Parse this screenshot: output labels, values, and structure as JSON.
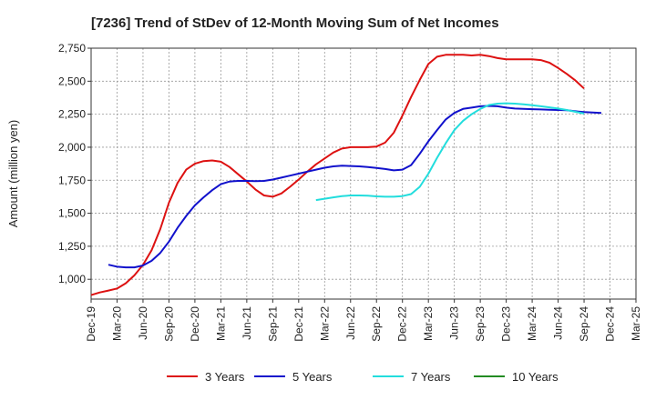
{
  "chart_data": {
    "type": "line",
    "title": "[7236]  Trend of StDev of 12-Month Moving Sum of Net Incomes",
    "xlabel": "",
    "ylabel": "Amount (million yen)",
    "ylim": [
      850,
      2750
    ],
    "yticks": [
      1000,
      1250,
      1500,
      1750,
      2000,
      2250,
      2500,
      2750
    ],
    "ytick_labels": [
      "1,000",
      "1,250",
      "1,500",
      "1,750",
      "2,000",
      "2,250",
      "2,500",
      "2,750"
    ],
    "xtick_labels": [
      "Dec-19",
      "Mar-20",
      "Jun-20",
      "Sep-20",
      "Dec-20",
      "Mar-21",
      "Jun-21",
      "Sep-21",
      "Dec-21",
      "Mar-22",
      "Jun-22",
      "Sep-22",
      "Dec-22",
      "Mar-23",
      "Jun-23",
      "Sep-23",
      "Dec-23",
      "Mar-24",
      "Jun-24",
      "Sep-24",
      "Dec-24",
      "Mar-25"
    ],
    "grid": true,
    "legend_position": "bottom",
    "series": [
      {
        "name": "3 Years",
        "color": "#dd1111",
        "start_index": 0,
        "values": [
          880,
          900,
          915,
          930,
          970,
          1030,
          1110,
          1220,
          1380,
          1580,
          1730,
          1830,
          1875,
          1895,
          1900,
          1890,
          1850,
          1795,
          1740,
          1680,
          1635,
          1625,
          1650,
          1700,
          1755,
          1815,
          1870,
          1915,
          1960,
          1990,
          2000,
          2000,
          2000,
          2005,
          2035,
          2110,
          2240,
          2380,
          2510,
          2630,
          2685,
          2700,
          2700,
          2700,
          2695,
          2700,
          2690,
          2675,
          2665,
          2665,
          2665,
          2665,
          2660,
          2640,
          2600,
          2555,
          2505,
          2445
        ]
      },
      {
        "name": "5 Years",
        "color": "#1111cc",
        "start_index": 2,
        "values": [
          1110,
          1095,
          1090,
          1090,
          1105,
          1140,
          1200,
          1285,
          1390,
          1480,
          1560,
          1620,
          1675,
          1720,
          1740,
          1745,
          1745,
          1743,
          1745,
          1755,
          1770,
          1785,
          1800,
          1815,
          1830,
          1845,
          1855,
          1860,
          1858,
          1855,
          1850,
          1843,
          1835,
          1825,
          1830,
          1865,
          1950,
          2045,
          2130,
          2210,
          2260,
          2290,
          2300,
          2310,
          2313,
          2310,
          2300,
          2293,
          2290,
          2288,
          2286,
          2284,
          2282,
          2280,
          2272,
          2266,
          2263,
          2260
        ]
      },
      {
        "name": "7 Years",
        "color": "#22dddd",
        "start_index": 26,
        "values": [
          1600,
          1610,
          1620,
          1630,
          1635,
          1635,
          1633,
          1628,
          1625,
          1625,
          1630,
          1645,
          1700,
          1800,
          1920,
          2030,
          2130,
          2200,
          2250,
          2290,
          2320,
          2330,
          2333,
          2330,
          2325,
          2318,
          2310,
          2302,
          2293,
          2282,
          2268,
          2255
        ]
      },
      {
        "name": "10 Years",
        "color": "#228b22",
        "start_index": 0,
        "values": []
      }
    ]
  }
}
